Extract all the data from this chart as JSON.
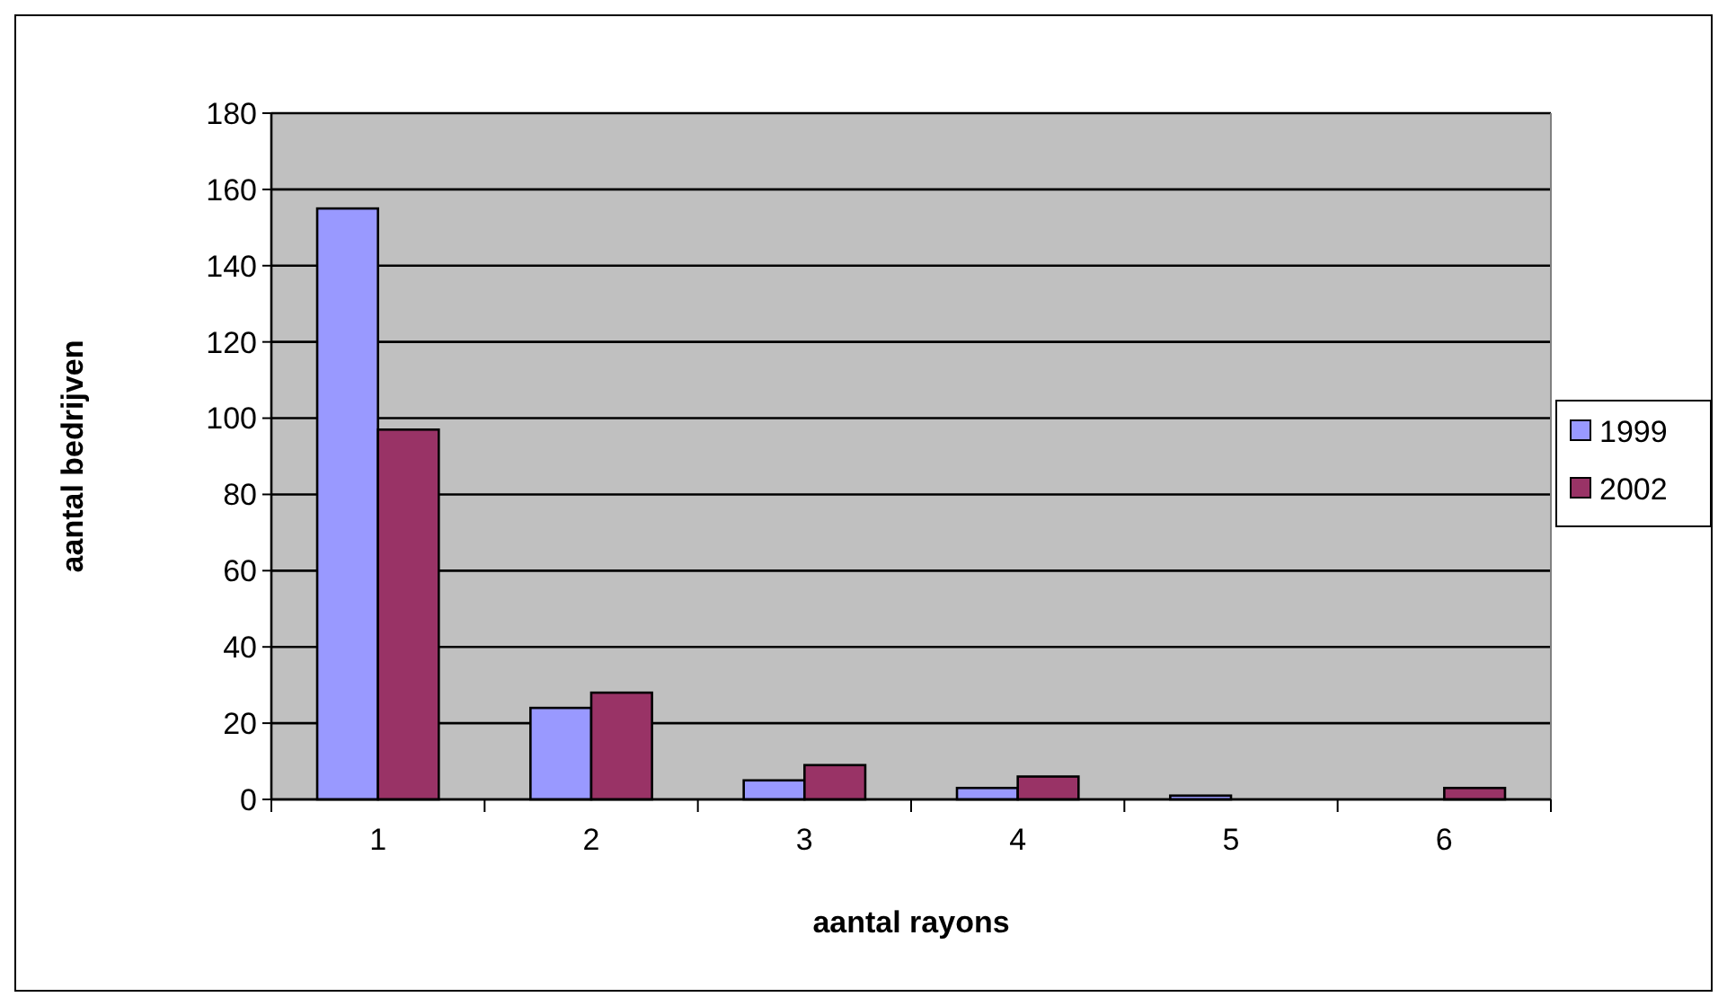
{
  "chart_data": {
    "type": "bar",
    "xlabel": "aantal rayons",
    "ylabel": "aantal bedrijven",
    "categories": [
      "1",
      "2",
      "3",
      "4",
      "5",
      "6"
    ],
    "series": [
      {
        "name": "1999",
        "color": "#9999ff",
        "values": [
          155,
          24,
          5,
          3,
          1,
          0
        ]
      },
      {
        "name": "2002",
        "color": "#993366",
        "values": [
          97,
          28,
          9,
          6,
          0,
          3
        ]
      }
    ],
    "ylim": [
      0,
      180
    ],
    "yticks": [
      0,
      20,
      40,
      60,
      80,
      100,
      120,
      140,
      160,
      180
    ],
    "grid": "y",
    "legend": "right"
  }
}
